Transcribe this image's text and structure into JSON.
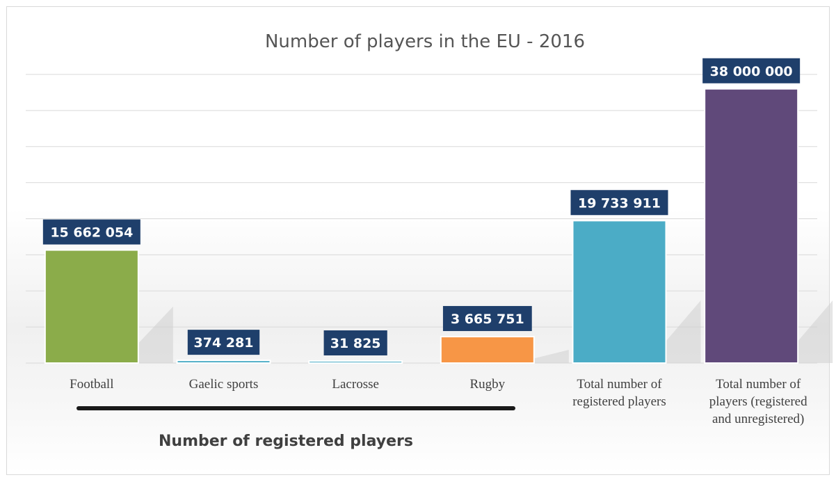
{
  "chart_data": {
    "type": "bar",
    "title": "Number of players in the EU - 2016",
    "categories": [
      "Football",
      "Gaelic sports",
      "Lacrosse",
      "Rugby",
      "Total number of registered players",
      "Total number of players (registered and unregistered)"
    ],
    "category_lines": [
      [
        "Football"
      ],
      [
        "Gaelic sports"
      ],
      [
        "Lacrosse"
      ],
      [
        "Rugby"
      ],
      [
        "Total number of",
        "registered players"
      ],
      [
        "Total number of",
        "players (registered",
        "and unregistered)"
      ]
    ],
    "values": [
      15662054,
      374281,
      31825,
      3665751,
      19733911,
      38000000
    ],
    "value_labels": [
      "15 662 054",
      "374 281",
      "31 825",
      "3 665 751",
      "19 733 911",
      "38 000 000"
    ],
    "bar_colors": [
      "#8bac4a",
      "#4bacc6",
      "#4bacc6",
      "#f79646",
      "#4bacc6",
      "#60497a"
    ],
    "label_box_color": "#1f3f6b",
    "ylim": [
      0,
      40000000
    ],
    "grid": true,
    "group_label": "Number of registered players",
    "group_covers": [
      "Football",
      "Gaelic sports",
      "Lacrosse",
      "Rugby"
    ]
  }
}
